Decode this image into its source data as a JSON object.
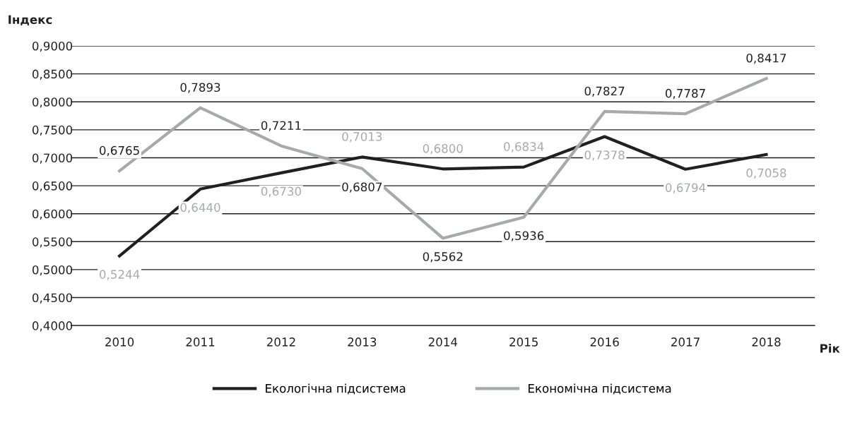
{
  "chart_data": {
    "type": "line",
    "ylabel": "Індекс",
    "xlabel": "Рік",
    "categories": [
      "2010",
      "2011",
      "2012",
      "2013",
      "2014",
      "2015",
      "2016",
      "2017",
      "2018"
    ],
    "series": [
      {
        "name": "Екологічна підсистема",
        "color": "#231f20",
        "values": [
          0.5244,
          0.644,
          0.673,
          0.7013,
          0.68,
          0.6834,
          0.7378,
          0.6794,
          0.7058
        ],
        "value_labels": [
          "0,5244",
          "0,6440",
          "0,6730",
          "0,7013",
          "0,6800",
          "0,6834",
          "0,7378",
          "0,6794",
          "0,7058"
        ]
      },
      {
        "name": "Економічна підсистема",
        "color": "#a7a9ac",
        "values": [
          0.6765,
          0.7893,
          0.7211,
          0.6807,
          0.5562,
          0.5936,
          0.7827,
          0.7787,
          0.8417
        ],
        "value_labels": [
          "0,6765",
          "0,7893",
          "0,7211",
          "0,6807",
          "0,5562",
          "0,5936",
          "0,7827",
          "0,7787",
          "0,8417"
        ]
      }
    ],
    "ylim": [
      0.4,
      0.9
    ],
    "yticks": [
      {
        "value": 0.4,
        "label": "0,4000"
      },
      {
        "value": 0.45,
        "label": "0,4500"
      },
      {
        "value": 0.5,
        "label": "0,5000"
      },
      {
        "value": 0.55,
        "label": "0,5500"
      },
      {
        "value": 0.6,
        "label": "0,6000"
      },
      {
        "value": 0.65,
        "label": "0,6500"
      },
      {
        "value": 0.7,
        "label": "0,7000"
      },
      {
        "value": 0.75,
        "label": "0,7500"
      },
      {
        "value": 0.8,
        "label": "0,8000"
      },
      {
        "value": 0.85,
        "label": "0,8500"
      },
      {
        "value": 0.9,
        "label": "0,9000"
      }
    ],
    "grid": "y",
    "legend": "bottom",
    "marker": "none",
    "line_style": "solid"
  }
}
